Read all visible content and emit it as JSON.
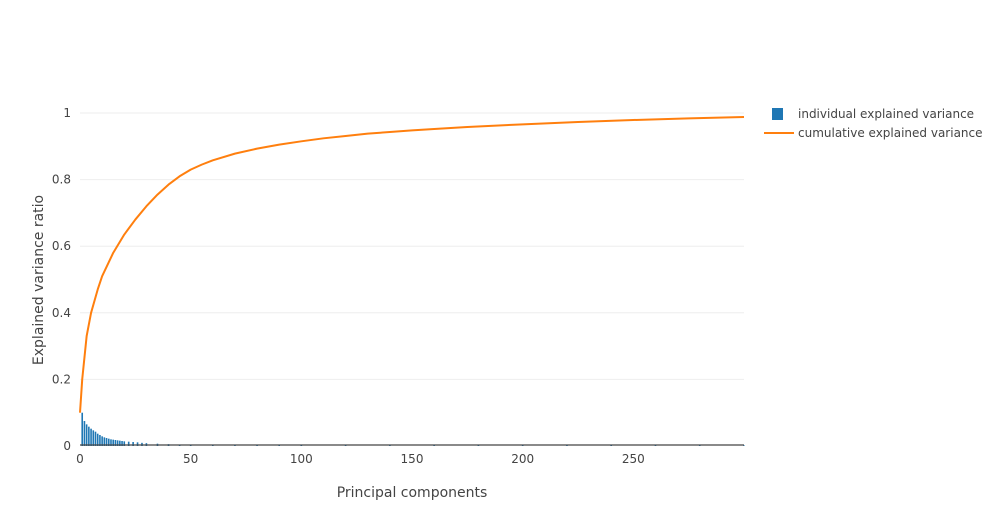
{
  "chart_data": {
    "type": "bar",
    "xlabel": "Principal components",
    "ylabel": "Explained variance ratio",
    "xlim": [
      0,
      300
    ],
    "ylim": [
      0,
      1
    ],
    "x_ticks": [
      0,
      50,
      100,
      150,
      200,
      250
    ],
    "x_tick_labels": [
      "0",
      "50",
      "100",
      "150",
      "200",
      "250"
    ],
    "y_ticks": [
      0,
      0.2,
      0.4,
      0.6,
      0.8,
      1
    ],
    "y_tick_labels": [
      "0",
      "0.2",
      "0.4",
      "0.6",
      "0.8",
      "1"
    ],
    "grid": true,
    "legend_position": "top-right",
    "series": [
      {
        "name": "individual explained variance",
        "type": "bar",
        "color": "#1f77b4",
        "x": [
          1,
          2,
          3,
          4,
          5,
          6,
          7,
          8,
          9,
          10,
          11,
          12,
          13,
          14,
          15,
          16,
          17,
          18,
          19,
          20,
          22,
          24,
          26,
          28,
          30,
          35,
          40,
          45,
          50,
          60,
          70,
          80,
          90,
          100,
          120,
          140,
          160,
          180,
          200,
          220,
          240,
          260,
          280,
          300
        ],
        "values": [
          0.1,
          0.075,
          0.065,
          0.058,
          0.052,
          0.047,
          0.043,
          0.037,
          0.033,
          0.029,
          0.026,
          0.024,
          0.022,
          0.02,
          0.019,
          0.018,
          0.017,
          0.016,
          0.015,
          0.014,
          0.013,
          0.012,
          0.011,
          0.0095,
          0.0085,
          0.007,
          0.0055,
          0.0045,
          0.004,
          0.003,
          0.0025,
          0.002,
          0.0016,
          0.0014,
          0.0011,
          0.0009,
          0.0007,
          0.0006,
          0.0005,
          0.0004,
          0.00035,
          0.0003,
          0.00025,
          0.0002
        ]
      },
      {
        "name": "cumulative explained variance",
        "type": "line",
        "color": "#ff7f0e",
        "x": [
          0,
          1,
          3,
          5,
          8,
          10,
          15,
          20,
          25,
          30,
          35,
          40,
          45,
          50,
          55,
          60,
          70,
          80,
          90,
          100,
          110,
          120,
          130,
          140,
          150,
          160,
          175,
          200,
          225,
          250,
          275,
          300
        ],
        "values": [
          0.1,
          0.2,
          0.33,
          0.4,
          0.47,
          0.51,
          0.58,
          0.635,
          0.68,
          0.72,
          0.755,
          0.785,
          0.81,
          0.83,
          0.845,
          0.858,
          0.878,
          0.893,
          0.905,
          0.915,
          0.924,
          0.931,
          0.938,
          0.943,
          0.948,
          0.952,
          0.958,
          0.966,
          0.973,
          0.979,
          0.984,
          0.988
        ]
      }
    ]
  }
}
